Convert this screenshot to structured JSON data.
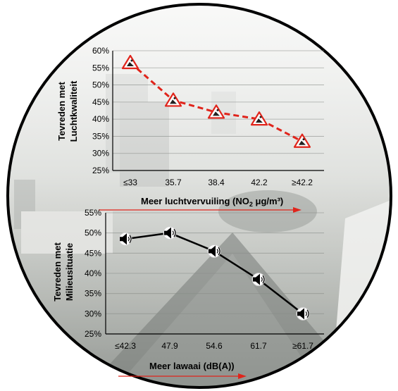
{
  "chart_data": [
    {
      "type": "line",
      "categories": [
        "≤33",
        "35.7",
        "38.4",
        "42.2",
        "≥42.2"
      ],
      "values": [
        56.5,
        45.5,
        42,
        40,
        33.5
      ],
      "ylim": [
        25,
        60
      ],
      "yticks": [
        "25%",
        "30%",
        "35%",
        "40%",
        "45%",
        "50%",
        "55%",
        "60%"
      ],
      "ylabel_line1": "Tevreden  met",
      "ylabel_line2": "Luchtkwaliteit",
      "xlabel_main": "Meer luchtvervuiling (NO",
      "xlabel_sub": "2",
      "xlabel_unit": " μg/m³)",
      "line_color": "#e0241b",
      "marker": "warning-triangle-icon",
      "grid": true
    },
    {
      "type": "line",
      "categories": [
        "≤42.3",
        "47.9",
        "54.6",
        "61.7",
        "≥61.7"
      ],
      "values": [
        48.5,
        50,
        45.5,
        38.5,
        30
      ],
      "ylim": [
        25,
        55
      ],
      "yticks": [
        "25%",
        "30%",
        "35%",
        "40%",
        "45%",
        "50%",
        "55%"
      ],
      "ylabel_line1": "Tevreden  met",
      "ylabel_line2": "Milieusituatie",
      "xlabel_main": "Meer lawaai (dB(A))",
      "line_color": "#000000",
      "marker": "speaker-icon",
      "grid": true
    }
  ],
  "colors": {
    "ring": "#000000",
    "arrow": "#e0241b",
    "photo_sky": "#cfd3d1",
    "photo_ground": "#8f948f"
  }
}
